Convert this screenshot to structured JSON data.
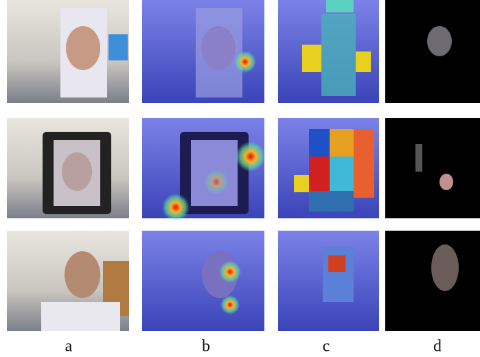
{
  "figure": {
    "column_labels": [
      "a",
      "b",
      "c",
      "d"
    ]
  }
}
